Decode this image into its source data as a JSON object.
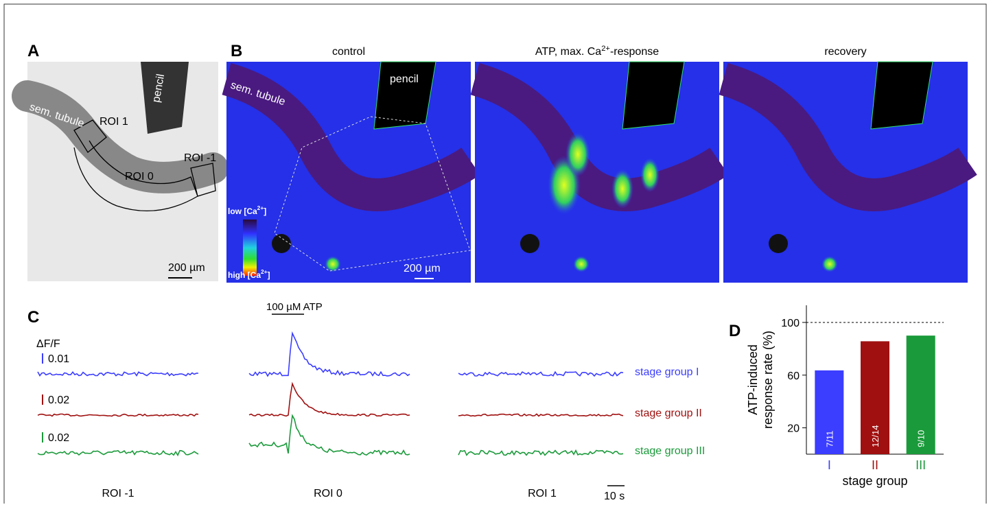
{
  "panels": {
    "A": {
      "letter": "A",
      "tubule": "sem. tubule",
      "roi1": "ROI 1",
      "roi0": "ROI 0",
      "roim1": "ROI -1",
      "pencil": "pencil",
      "scale": "200 µm"
    },
    "B": {
      "letter": "B",
      "titles": [
        {
          "text": "control"
        },
        {
          "pre": "ATP, max. Ca",
          "sup": "2+",
          "post": "-response"
        },
        {
          "text": "recovery"
        }
      ],
      "tubule": "sem. tubule",
      "pencil": "pencil",
      "low": {
        "pre": "low [Ca",
        "sup": "2+",
        "post": "]"
      },
      "high": {
        "pre": "high [Ca",
        "sup": "2+",
        "post": "]"
      },
      "scale": "200 µm"
    },
    "C": {
      "letter": "C",
      "ylabel": "ΔF/F",
      "scales": [
        "0.01",
        "0.02",
        "0.02"
      ],
      "stimulus": "100 µM ATP",
      "rois": [
        "ROI -1",
        "ROI 0",
        "ROI 1"
      ],
      "groups": [
        "stage group I",
        "stage group II",
        "stage group III"
      ],
      "time": "10 s"
    }
  },
  "chart_data": {
    "type": "bar",
    "letter": "D",
    "ylabel": [
      "ATP-induced",
      "response rate (%)"
    ],
    "xlabel": "stage group",
    "categories": [
      "I",
      "II",
      "III"
    ],
    "values": [
      63.6,
      85.7,
      90
    ],
    "value_labels": [
      "7/11",
      "12/14",
      "9/10"
    ],
    "colors": [
      "#3b3dff",
      "#a01010",
      "#1a9a3a"
    ],
    "ylim": [
      0,
      113
    ],
    "yticks": [
      20,
      60,
      100
    ],
    "reference": 100
  }
}
